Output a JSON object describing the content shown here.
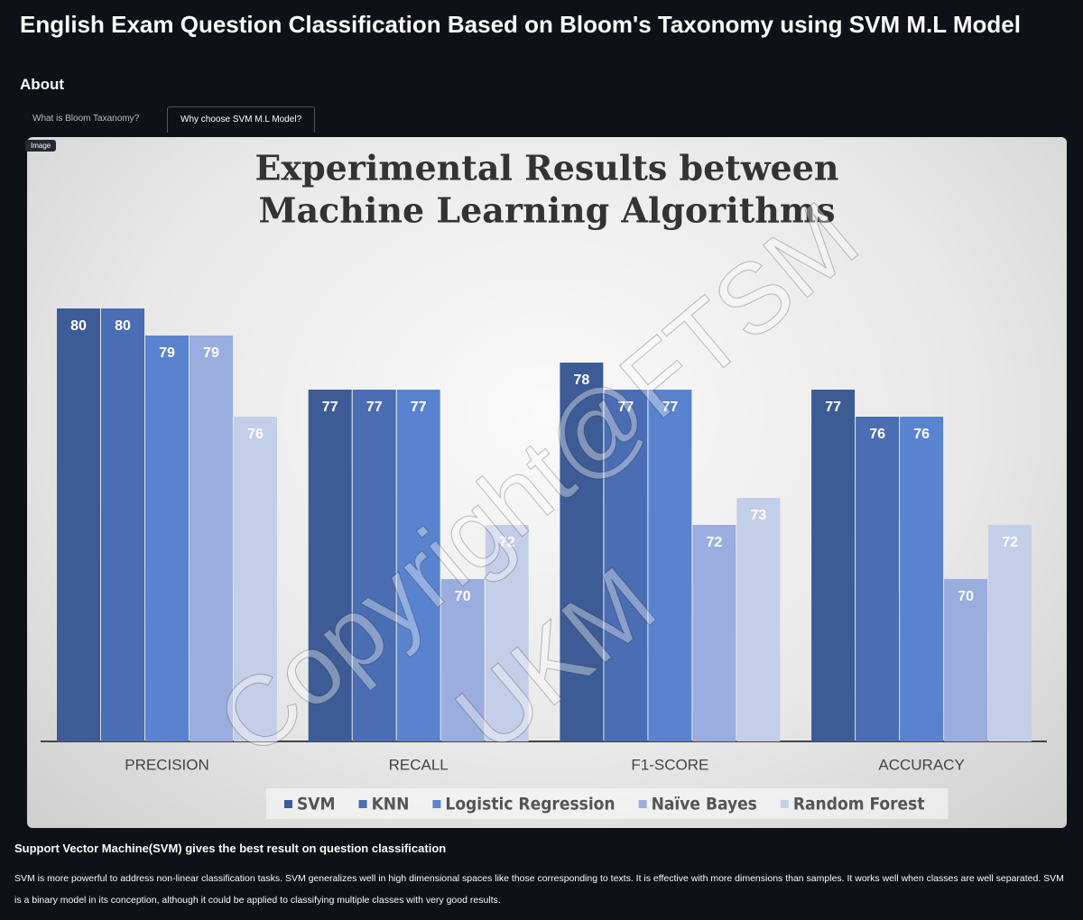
{
  "header": {
    "title": "English Exam Question Classification Based on Bloom's Taxonomy using SVM M.L Model"
  },
  "about": {
    "heading": "About",
    "tabs": [
      "What is Bloom Taxanomy?",
      "Why choose SVM M.L Model?"
    ],
    "image_badge": "Image"
  },
  "chart_data": {
    "type": "bar",
    "title": "Experimental Results between",
    "subtitle": "Machine Learning Algorithms",
    "categories": [
      "PRECISION",
      "RECALL",
      "F1-SCORE",
      "ACCURACY"
    ],
    "series": [
      {
        "name": "SVM",
        "color": "#3d5c96",
        "values": [
          80,
          77,
          78,
          77
        ]
      },
      {
        "name": "KNN",
        "color": "#4a6db3",
        "values": [
          80,
          77,
          77,
          76
        ]
      },
      {
        "name": "Logistic Regression",
        "color": "#5a83cf",
        "values": [
          79,
          77,
          77,
          76
        ]
      },
      {
        "name": "Naïve Bayes",
        "color": "#9badde",
        "values": [
          79,
          70,
          72,
          70
        ]
      },
      {
        "name": "Random Forest",
        "color": "#c3cee9",
        "values": [
          76,
          72,
          73,
          72
        ]
      }
    ],
    "ylim": [
      64,
      84
    ]
  },
  "summary": {
    "heading": "Support Vector Machine(SVM) gives the best result on question classification",
    "text": "SVM is more powerful to address non-linear classification tasks. SVM generalizes well in high dimensional spaces like those corresponding to texts. It is effective with more dimensions than samples. It works well when classes are well separated. SVM is a binary model in its conception, although it could be applied to classifying multiple classes with very good results."
  },
  "watermark": {
    "line1": "Copyright@FTSM",
    "line2": "UKM"
  }
}
